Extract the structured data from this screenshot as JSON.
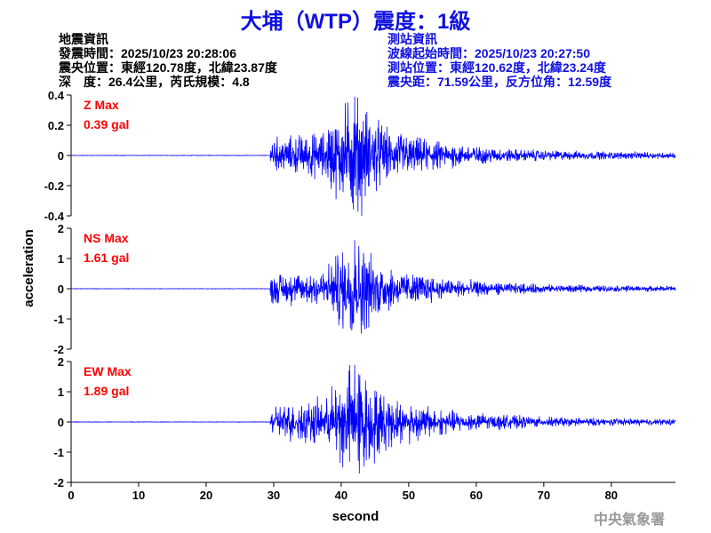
{
  "title": "大埔（WTP）震度：1級",
  "quake_info": {
    "heading": "地震資訊",
    "lines": [
      "發震時間：2025/10/23 20:28:06",
      "震央位置：東經120.78度，北緯23.87度",
      "深　度：26.4公里，芮氏規模：4.8"
    ]
  },
  "station_info": {
    "heading": "測站資訊",
    "lines": [
      "波線起始時間：2025/10/23 20:27:50",
      "測站位置：東經120.62度，北緯23.24度",
      "震央距：71.59公里，反方位角：12.59度"
    ]
  },
  "watermark": "中央氣象署",
  "chart_data": {
    "type": "line",
    "xlabel": "second",
    "ylabel": "acceleration",
    "xlim": [
      0,
      89.5
    ],
    "xticks": [
      "0",
      "10",
      "20",
      "30",
      "40",
      "50",
      "60",
      "70",
      "80"
    ],
    "line_color": "#0000ff",
    "onset_s": 29.5,
    "peak_s": 42,
    "panels": [
      {
        "name": "Z",
        "label": "Z Max",
        "max": "0.39 gal",
        "peak": 0.39,
        "ylim": [
          -0.4,
          0.4
        ],
        "yticks": [
          "0.4",
          "0.2",
          "0",
          "-0.2",
          "-0.4"
        ]
      },
      {
        "name": "NS",
        "label": "NS Max",
        "max": "1.61 gal",
        "peak": 1.61,
        "ylim": [
          -2,
          2
        ],
        "yticks": [
          "2",
          "1",
          "0",
          "-1",
          "-2"
        ]
      },
      {
        "name": "EW",
        "label": "EW Max",
        "max": "1.89 gal",
        "peak": 1.89,
        "ylim": [
          -2,
          2
        ],
        "yticks": [
          "2",
          "1",
          "0",
          "-1",
          "-2"
        ]
      }
    ]
  }
}
